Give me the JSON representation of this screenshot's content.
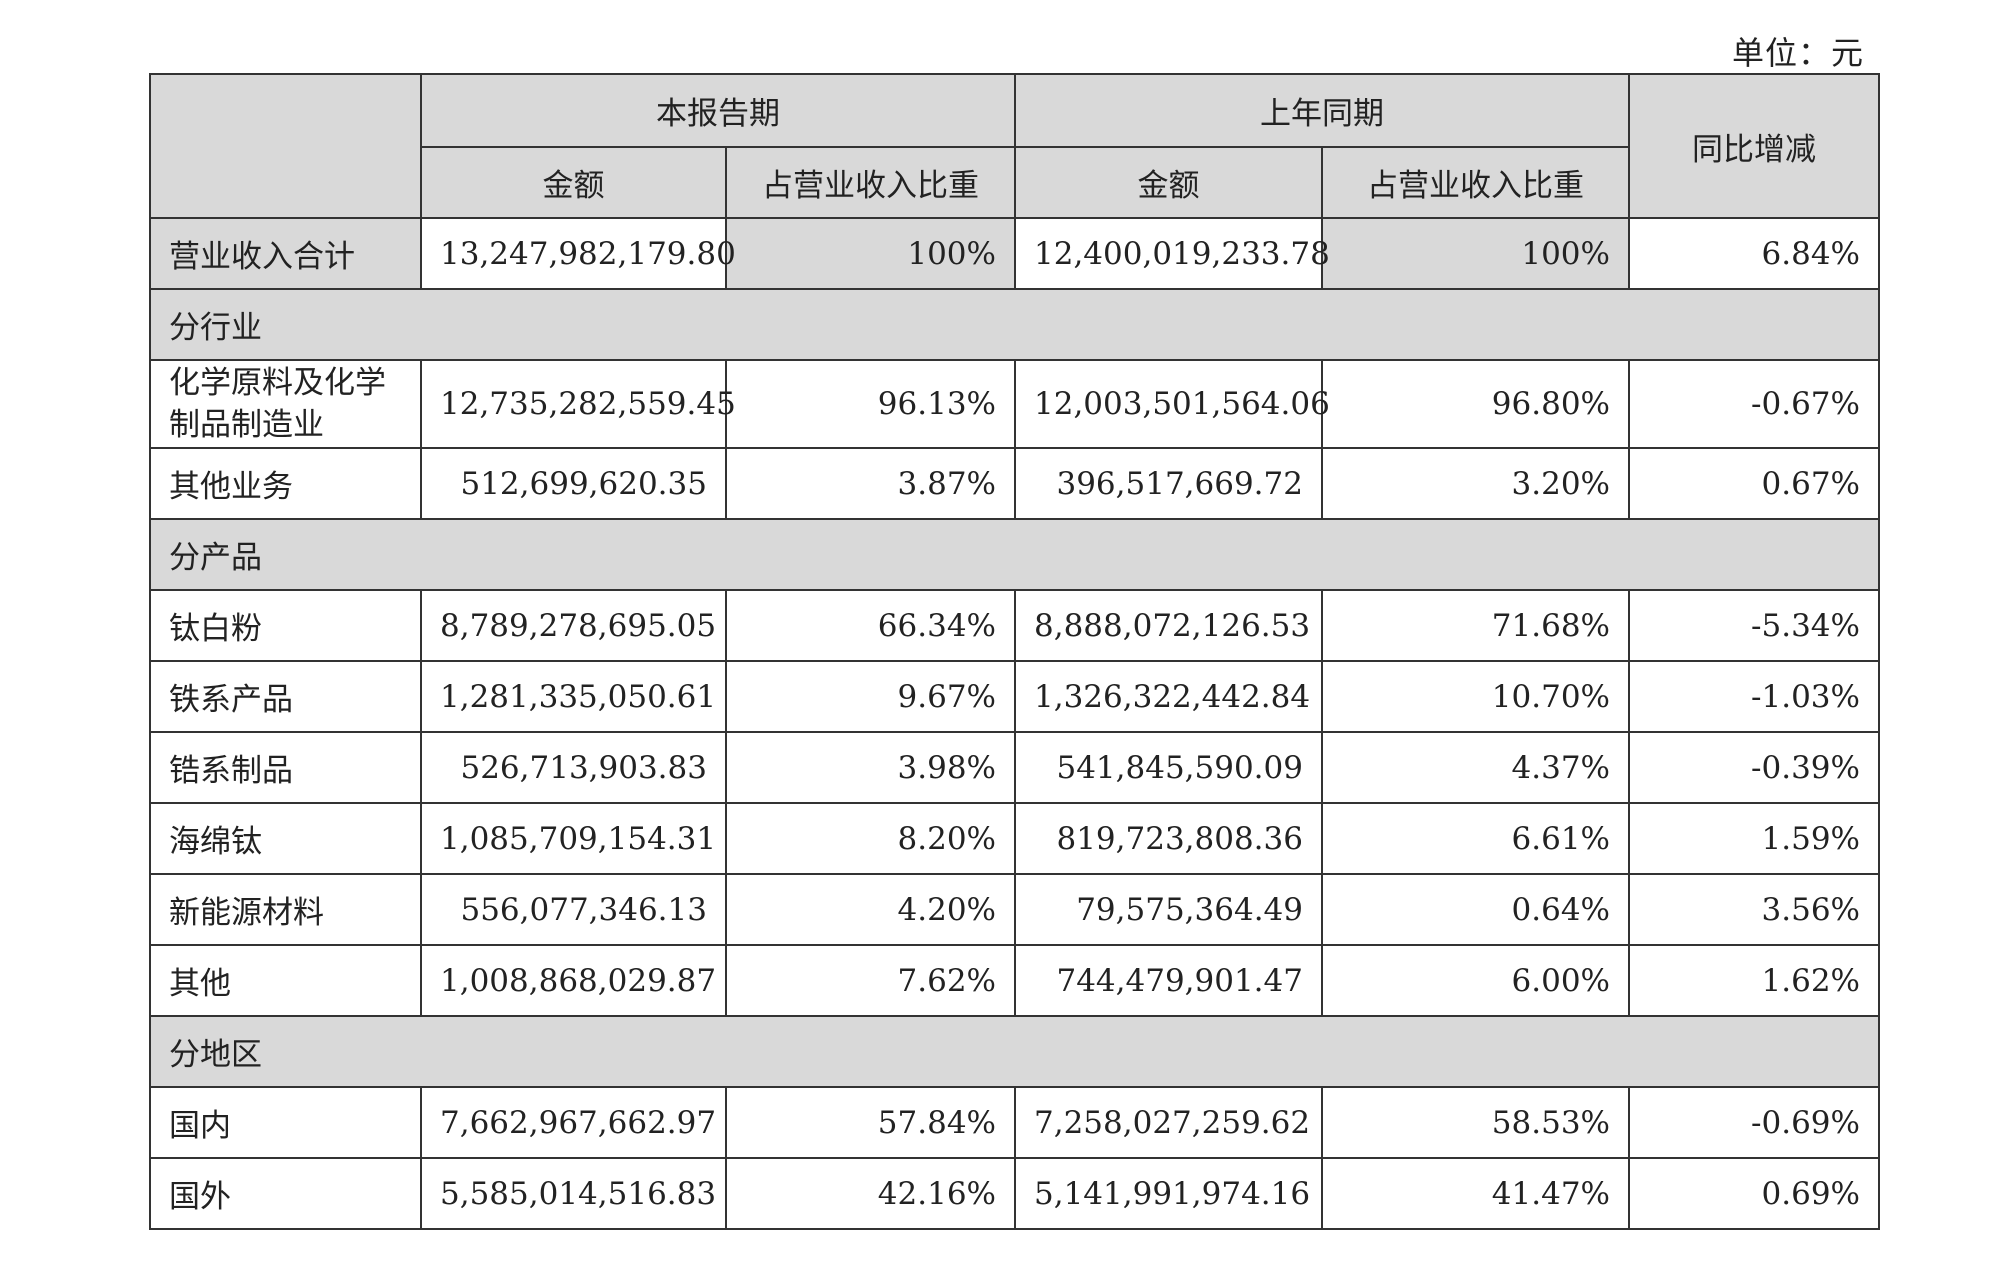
{
  "unit_label": "单位：元",
  "header": {
    "current_period": "本报告期",
    "prior_period": "上年同期",
    "yoy_change": "同比增减",
    "amount": "金额",
    "share": "占营业收入比重"
  },
  "total_row": {
    "label": "营业收入合计",
    "cur_amount": "13,247,982,179.80",
    "cur_share": "100%",
    "prev_amount": "12,400,019,233.78",
    "prev_share": "100%",
    "yoy": "6.84%"
  },
  "sections": [
    {
      "title": "分行业",
      "rows": [
        {
          "label": "化学原料及化学制品制造业",
          "cur_amount": "12,735,282,559.45",
          "cur_share": "96.13%",
          "prev_amount": "12,003,501,564.06",
          "prev_share": "96.80%",
          "yoy": "-0.67%"
        },
        {
          "label": "其他业务",
          "cur_amount": "512,699,620.35",
          "cur_share": "3.87%",
          "prev_amount": "396,517,669.72",
          "prev_share": "3.20%",
          "yoy": "0.67%"
        }
      ]
    },
    {
      "title": "分产品",
      "rows": [
        {
          "label": "钛白粉",
          "cur_amount": "8,789,278,695.05",
          "cur_share": "66.34%",
          "prev_amount": "8,888,072,126.53",
          "prev_share": "71.68%",
          "yoy": "-5.34%"
        },
        {
          "label": "铁系产品",
          "cur_amount": "1,281,335,050.61",
          "cur_share": "9.67%",
          "prev_amount": "1,326,322,442.84",
          "prev_share": "10.70%",
          "yoy": "-1.03%"
        },
        {
          "label": "锆系制品",
          "cur_amount": "526,713,903.83",
          "cur_share": "3.98%",
          "prev_amount": "541,845,590.09",
          "prev_share": "4.37%",
          "yoy": "-0.39%"
        },
        {
          "label": "海绵钛",
          "cur_amount": "1,085,709,154.31",
          "cur_share": "8.20%",
          "prev_amount": "819,723,808.36",
          "prev_share": "6.61%",
          "yoy": "1.59%"
        },
        {
          "label": "新能源材料",
          "cur_amount": "556,077,346.13",
          "cur_share": "4.20%",
          "prev_amount": "79,575,364.49",
          "prev_share": "0.64%",
          "yoy": "3.56%"
        },
        {
          "label": "其他",
          "cur_amount": "1,008,868,029.87",
          "cur_share": "7.62%",
          "prev_amount": "744,479,901.47",
          "prev_share": "6.00%",
          "yoy": "1.62%"
        }
      ]
    },
    {
      "title": "分地区",
      "rows": [
        {
          "label": "国内",
          "cur_amount": "7,662,967,662.97",
          "cur_share": "57.84%",
          "prev_amount": "7,258,027,259.62",
          "prev_share": "58.53%",
          "yoy": "-0.69%"
        },
        {
          "label": "国外",
          "cur_amount": "5,585,014,516.83",
          "cur_share": "42.16%",
          "prev_amount": "5,141,991,974.16",
          "prev_share": "41.47%",
          "yoy": "0.69%"
        }
      ]
    }
  ]
}
